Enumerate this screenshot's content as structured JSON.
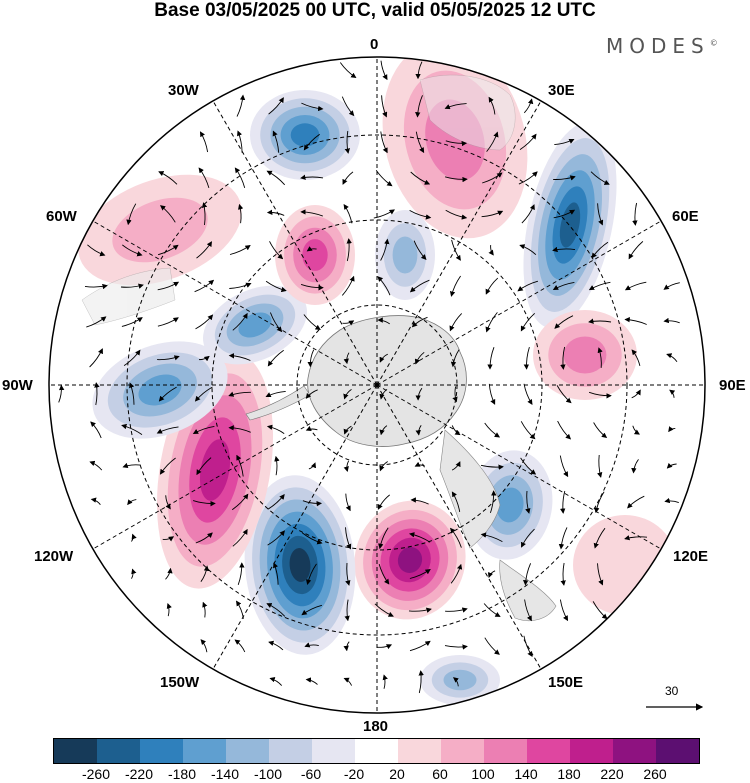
{
  "title": "Base 03/05/2025 00 UTC, valid 05/05/2025 12 UTC",
  "brand": {
    "name": "MODES",
    "mark": "©"
  },
  "map": {
    "projection": "south-polar-stereographic",
    "longitude_labels": {
      "top": "0",
      "bottom": "180",
      "left": "90W",
      "right": "90E",
      "w30": "30W",
      "e30": "30E",
      "w60": "60W",
      "e60": "60E",
      "w120": "120W",
      "e120": "120E",
      "w150": "150W",
      "e150": "150E"
    },
    "reference_vector": "30",
    "colors": {
      "land": "#e4e4e4",
      "graticule": "#000000",
      "coast": "#777777"
    }
  },
  "colorbar": {
    "colors": [
      "#163a59",
      "#1d5f8f",
      "#2f80bc",
      "#5f9fd0",
      "#95b8da",
      "#c4cfe5",
      "#e6e6f2",
      "#ffffff",
      "#f9d7dc",
      "#f5aec6",
      "#ec7fb3",
      "#df46a0",
      "#bf1f8d",
      "#8e1280",
      "#5c0f71"
    ],
    "ticks": [
      "-260",
      "-220",
      "-180",
      "-140",
      "-100",
      "-60",
      "-20",
      "20",
      "60",
      "100",
      "140",
      "180",
      "220",
      "260"
    ]
  },
  "anomalies": [
    {
      "shade": 10,
      "label": "pos-0E-upper"
    },
    {
      "shade": 1,
      "label": "neg-30E"
    },
    {
      "shade": 10,
      "label": "pos-90E"
    },
    {
      "shade": 3,
      "label": "neg-120E"
    },
    {
      "shade": 8,
      "label": "pos-120E-outer"
    },
    {
      "shade": 13,
      "label": "pos-170W"
    },
    {
      "shade": 0,
      "label": "neg-160W"
    },
    {
      "shade": 12,
      "label": "pos-120W"
    },
    {
      "shade": 3,
      "label": "neg-90W"
    },
    {
      "shade": 3,
      "label": "neg-70W"
    },
    {
      "shade": 11,
      "label": "pos-50W"
    },
    {
      "shade": 9,
      "label": "pos-60W-outer"
    },
    {
      "shade": 2,
      "label": "neg-30W"
    },
    {
      "shade": 4,
      "label": "neg-0-inner"
    },
    {
      "shade": 4,
      "label": "neg-150E"
    }
  ]
}
